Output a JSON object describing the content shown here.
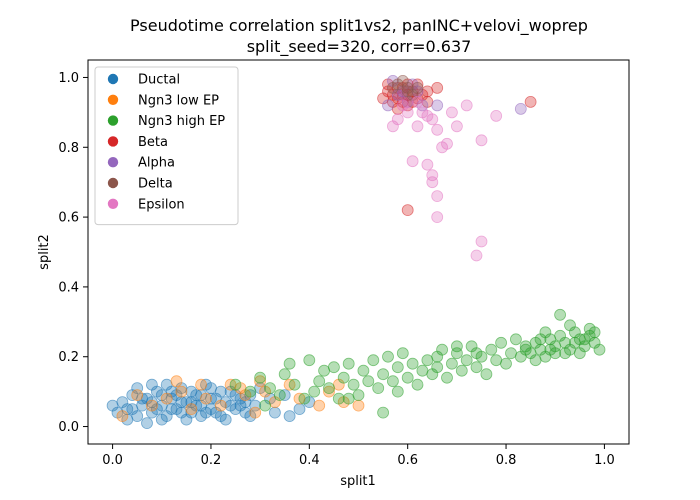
{
  "chart_data": {
    "type": "scatter",
    "title": "Pseudotime correlation split1vs2, panINC+velovi_woprep",
    "subtitle": "split_seed=320, corr=0.637",
    "xlabel": "split1",
    "ylabel": "split2",
    "xlim": [
      -0.05,
      1.05
    ],
    "ylim": [
      -0.05,
      1.05
    ],
    "xticks": [
      0.0,
      0.2,
      0.4,
      0.6,
      0.8,
      1.0
    ],
    "yticks": [
      0.0,
      0.2,
      0.4,
      0.6,
      0.8,
      1.0
    ],
    "xtick_labels": [
      "0.0",
      "0.2",
      "0.4",
      "0.6",
      "0.8",
      "1.0"
    ],
    "ytick_labels": [
      "0.0",
      "0.2",
      "0.4",
      "0.6",
      "0.8",
      "1.0"
    ],
    "grid": false,
    "legend_position": "upper-left",
    "series": [
      {
        "name": "Ductal",
        "color": "#1f77b4",
        "points": [
          [
            0.01,
            0.04
          ],
          [
            0.02,
            0.07
          ],
          [
            0.03,
            0.05
          ],
          [
            0.04,
            0.09
          ],
          [
            0.05,
            0.03
          ],
          [
            0.06,
            0.06
          ],
          [
            0.07,
            0.08
          ],
          [
            0.08,
            0.04
          ],
          [
            0.09,
            0.1
          ],
          [
            0.1,
            0.06
          ],
          [
            0.11,
            0.03
          ],
          [
            0.12,
            0.08
          ],
          [
            0.13,
            0.05
          ],
          [
            0.14,
            0.11
          ],
          [
            0.15,
            0.07
          ],
          [
            0.16,
            0.04
          ],
          [
            0.17,
            0.09
          ],
          [
            0.18,
            0.06
          ],
          [
            0.19,
            0.12
          ],
          [
            0.2,
            0.05
          ],
          [
            0.21,
            0.08
          ],
          [
            0.22,
            0.03
          ],
          [
            0.23,
            0.07
          ],
          [
            0.24,
            0.1
          ],
          [
            0.25,
            0.05
          ],
          [
            0.26,
            0.08
          ],
          [
            0.27,
            0.04
          ],
          [
            0.28,
            0.09
          ],
          [
            0.29,
            0.06
          ],
          [
            0.3,
            0.11
          ],
          [
            0.05,
            0.11
          ],
          [
            0.08,
            0.07
          ],
          [
            0.1,
            0.09
          ],
          [
            0.12,
            0.05
          ],
          [
            0.14,
            0.07
          ],
          [
            0.16,
            0.1
          ],
          [
            0.18,
            0.03
          ],
          [
            0.2,
            0.08
          ],
          [
            0.22,
            0.1
          ],
          [
            0.24,
            0.06
          ],
          [
            0.03,
            0.02
          ],
          [
            0.07,
            0.01
          ],
          [
            0.11,
            0.12
          ],
          [
            0.15,
            0.02
          ],
          [
            0.19,
            0.04
          ],
          [
            0.23,
            0.02
          ],
          [
            0.27,
            0.07
          ],
          [
            0.33,
            0.04
          ],
          [
            0.35,
            0.09
          ],
          [
            0.38,
            0.05
          ],
          [
            0.09,
            0.05
          ],
          [
            0.13,
            0.09
          ],
          [
            0.17,
            0.06
          ],
          [
            0.21,
            0.04
          ],
          [
            0.25,
            0.09
          ],
          [
            0.06,
            0.08
          ],
          [
            0.12,
            0.1
          ],
          [
            0.18,
            0.09
          ],
          [
            0.28,
            0.03
          ],
          [
            0.32,
            0.08
          ],
          [
            0.0,
            0.06
          ],
          [
            0.04,
            0.05
          ],
          [
            0.08,
            0.12
          ],
          [
            0.14,
            0.04
          ],
          [
            0.2,
            0.11
          ],
          [
            0.26,
            0.06
          ],
          [
            0.36,
            0.03
          ],
          [
            0.4,
            0.07
          ],
          [
            0.1,
            0.02
          ],
          [
            0.16,
            0.07
          ]
        ]
      },
      {
        "name": "Ngn3 low EP",
        "color": "#ff7f0e",
        "points": [
          [
            0.02,
            0.03
          ],
          [
            0.05,
            0.09
          ],
          [
            0.08,
            0.06
          ],
          [
            0.11,
            0.08
          ],
          [
            0.13,
            0.13
          ],
          [
            0.16,
            0.05
          ],
          [
            0.19,
            0.08
          ],
          [
            0.22,
            0.06
          ],
          [
            0.24,
            0.12
          ],
          [
            0.27,
            0.09
          ],
          [
            0.29,
            0.04
          ],
          [
            0.31,
            0.1
          ],
          [
            0.33,
            0.07
          ],
          [
            0.36,
            0.12
          ],
          [
            0.38,
            0.08
          ],
          [
            0.42,
            0.06
          ],
          [
            0.44,
            0.1
          ],
          [
            0.47,
            0.07
          ],
          [
            0.5,
            0.06
          ],
          [
            0.46,
            0.12
          ],
          [
            0.26,
            0.11
          ],
          [
            0.3,
            0.13
          ],
          [
            0.14,
            0.1
          ],
          [
            0.18,
            0.12
          ]
        ]
      },
      {
        "name": "Ngn3 high EP",
        "color": "#2ca02c",
        "points": [
          [
            0.25,
            0.12
          ],
          [
            0.28,
            0.1
          ],
          [
            0.3,
            0.14
          ],
          [
            0.32,
            0.11
          ],
          [
            0.34,
            0.09
          ],
          [
            0.35,
            0.15
          ],
          [
            0.37,
            0.12
          ],
          [
            0.39,
            0.08
          ],
          [
            0.4,
            0.19
          ],
          [
            0.41,
            0.1
          ],
          [
            0.42,
            0.13
          ],
          [
            0.43,
            0.16
          ],
          [
            0.44,
            0.11
          ],
          [
            0.45,
            0.17
          ],
          [
            0.46,
            0.08
          ],
          [
            0.47,
            0.14
          ],
          [
            0.48,
            0.18
          ],
          [
            0.49,
            0.12
          ],
          [
            0.5,
            0.09
          ],
          [
            0.51,
            0.16
          ],
          [
            0.52,
            0.13
          ],
          [
            0.53,
            0.19
          ],
          [
            0.54,
            0.11
          ],
          [
            0.55,
            0.15
          ],
          [
            0.56,
            0.2
          ],
          [
            0.57,
            0.13
          ],
          [
            0.58,
            0.17
          ],
          [
            0.59,
            0.21
          ],
          [
            0.6,
            0.14
          ],
          [
            0.61,
            0.18
          ],
          [
            0.62,
            0.12
          ],
          [
            0.63,
            0.16
          ],
          [
            0.64,
            0.19
          ],
          [
            0.65,
            0.15
          ],
          [
            0.66,
            0.17
          ],
          [
            0.67,
            0.22
          ],
          [
            0.68,
            0.14
          ],
          [
            0.69,
            0.18
          ],
          [
            0.7,
            0.21
          ],
          [
            0.71,
            0.16
          ],
          [
            0.72,
            0.19
          ],
          [
            0.73,
            0.23
          ],
          [
            0.74,
            0.17
          ],
          [
            0.75,
            0.2
          ],
          [
            0.76,
            0.15
          ],
          [
            0.77,
            0.22
          ],
          [
            0.78,
            0.19
          ],
          [
            0.79,
            0.24
          ],
          [
            0.8,
            0.18
          ],
          [
            0.81,
            0.21
          ],
          [
            0.82,
            0.25
          ],
          [
            0.83,
            0.2
          ],
          [
            0.84,
            0.23
          ],
          [
            0.85,
            0.21
          ],
          [
            0.86,
            0.24
          ],
          [
            0.87,
            0.22
          ],
          [
            0.88,
            0.2
          ],
          [
            0.89,
            0.25
          ],
          [
            0.9,
            0.23
          ],
          [
            0.91,
            0.26
          ],
          [
            0.92,
            0.24
          ],
          [
            0.93,
            0.22
          ],
          [
            0.94,
            0.27
          ],
          [
            0.95,
            0.25
          ],
          [
            0.96,
            0.23
          ],
          [
            0.97,
            0.26
          ],
          [
            0.98,
            0.24
          ],
          [
            0.99,
            0.22
          ],
          [
            0.93,
            0.29
          ],
          [
            0.91,
            0.32
          ],
          [
            0.95,
            0.21
          ],
          [
            0.97,
            0.28
          ],
          [
            0.88,
            0.27
          ],
          [
            0.86,
            0.19
          ],
          [
            0.9,
            0.21
          ],
          [
            0.94,
            0.24
          ],
          [
            0.96,
            0.25
          ],
          [
            0.92,
            0.21
          ],
          [
            0.89,
            0.22
          ],
          [
            0.98,
            0.27
          ],
          [
            0.55,
            0.04
          ],
          [
            0.48,
            0.08
          ],
          [
            0.58,
            0.1
          ],
          [
            0.66,
            0.2
          ],
          [
            0.7,
            0.23
          ],
          [
            0.74,
            0.21
          ],
          [
            0.84,
            0.22
          ],
          [
            0.87,
            0.25
          ],
          [
            0.36,
            0.18
          ],
          [
            0.31,
            0.06
          ]
        ]
      },
      {
        "name": "Beta",
        "color": "#d62728",
        "points": [
          [
            0.56,
            0.96
          ],
          [
            0.57,
            0.93
          ],
          [
            0.58,
            0.97
          ],
          [
            0.59,
            0.95
          ],
          [
            0.6,
            0.92
          ],
          [
            0.61,
            0.96
          ],
          [
            0.62,
            0.94
          ],
          [
            0.58,
            0.91
          ],
          [
            0.6,
            0.98
          ],
          [
            0.57,
            0.95
          ],
          [
            0.59,
            0.97
          ],
          [
            0.61,
            0.93
          ],
          [
            0.63,
            0.95
          ],
          [
            0.55,
            0.94
          ],
          [
            0.62,
            0.98
          ],
          [
            0.6,
            0.95
          ],
          [
            0.58,
            0.94
          ],
          [
            0.64,
            0.96
          ],
          [
            0.56,
            0.98
          ],
          [
            0.59,
            0.93
          ],
          [
            0.64,
            0.93
          ],
          [
            0.66,
            0.97
          ],
          [
            0.85,
            0.93
          ],
          [
            0.6,
            0.62
          ]
        ]
      },
      {
        "name": "Alpha",
        "color": "#9467bd",
        "points": [
          [
            0.57,
            0.99
          ],
          [
            0.59,
            0.96
          ],
          [
            0.61,
            0.98
          ],
          [
            0.6,
            0.93
          ],
          [
            0.58,
            0.95
          ],
          [
            0.62,
            0.96
          ],
          [
            0.63,
            0.92
          ],
          [
            0.66,
            0.92
          ],
          [
            0.83,
            0.91
          ],
          [
            0.56,
            0.92
          ]
        ]
      },
      {
        "name": "Delta",
        "color": "#8c564b",
        "points": [
          [
            0.58,
            0.98
          ],
          [
            0.6,
            0.97
          ],
          [
            0.59,
            0.99
          ],
          [
            0.61,
            0.95
          ],
          [
            0.57,
            0.97
          ],
          [
            0.62,
            0.97
          ],
          [
            0.6,
            0.96
          ]
        ]
      },
      {
        "name": "Epsilon",
        "color": "#e377c2",
        "points": [
          [
            0.58,
            0.88
          ],
          [
            0.6,
            0.9
          ],
          [
            0.62,
            0.86
          ],
          [
            0.64,
            0.89
          ],
          [
            0.66,
            0.85
          ],
          [
            0.68,
            0.81
          ],
          [
            0.7,
            0.86
          ],
          [
            0.72,
            0.92
          ],
          [
            0.75,
            0.82
          ],
          [
            0.78,
            0.89
          ],
          [
            0.61,
            0.76
          ],
          [
            0.64,
            0.75
          ],
          [
            0.65,
            0.72
          ],
          [
            0.66,
            0.66
          ],
          [
            0.65,
            0.7
          ],
          [
            0.66,
            0.6
          ],
          [
            0.74,
            0.49
          ],
          [
            0.75,
            0.53
          ],
          [
            0.67,
            0.8
          ],
          [
            0.63,
            0.9
          ],
          [
            0.59,
            0.92
          ],
          [
            0.62,
            0.93
          ],
          [
            0.57,
            0.86
          ],
          [
            0.65,
            0.88
          ],
          [
            0.69,
            0.9
          ]
        ]
      }
    ]
  }
}
